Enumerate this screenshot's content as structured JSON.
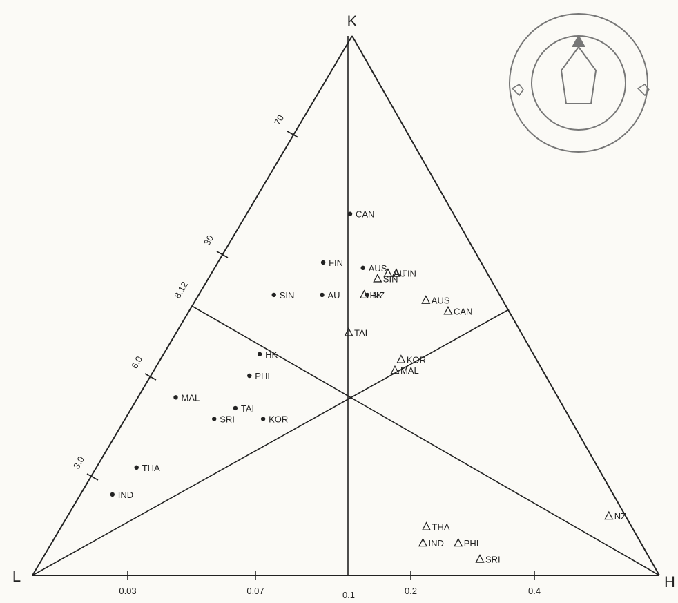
{
  "chart_data": {
    "type": "scatter",
    "title": "",
    "vertices": {
      "top": "K",
      "left": "L",
      "right": "H"
    },
    "left_edge_labels": [
      "3.0",
      "6.0",
      "8.12",
      "30",
      "70"
    ],
    "bottom_edge_labels": [
      "0.03",
      "0.07",
      "0.1",
      "0.2",
      "0.4"
    ],
    "series": [
      {
        "marker": "dot",
        "points": [
          {
            "label": "NZ",
            "b": 0.52,
            "a": 0.56
          },
          {
            "label": "AUS",
            "b": 0.57,
            "a": 0.55
          },
          {
            "label": "CAN",
            "b": 0.67,
            "a": 0.5
          },
          {
            "label": "AU",
            "b": 0.52,
            "a": 0.41
          },
          {
            "label": "FIN",
            "b": 0.58,
            "a": 0.4
          },
          {
            "label": "KOR",
            "b": 0.29,
            "a": 0.31
          },
          {
            "label": "HK",
            "b": 0.41,
            "a": 0.26
          },
          {
            "label": "PHI",
            "b": 0.37,
            "a": 0.25
          },
          {
            "label": "TAI",
            "b": 0.31,
            "a": 0.24
          },
          {
            "label": "SRI",
            "b": 0.29,
            "a": 0.2
          },
          {
            "label": "SIN",
            "b": 0.52,
            "a": 0.25
          },
          {
            "label": "MAL",
            "b": 0.33,
            "a": 0.09
          },
          {
            "label": "THA",
            "b": 0.2,
            "a": 0.08
          },
          {
            "label": "IND",
            "b": 0.15,
            "a": 0.06
          }
        ]
      },
      {
        "marker": "triangle",
        "points": [
          {
            "label": "AU",
            "b": 0.56,
            "a": 0.64
          },
          {
            "label": "TAI",
            "b": 0.45,
            "a": 0.5
          },
          {
            "label": "FIN",
            "b": 0.56,
            "a": 0.67
          },
          {
            "label": "SIN",
            "b": 0.55,
            "a": 0.6
          },
          {
            "label": "HK",
            "b": 0.52,
            "a": 0.55
          },
          {
            "label": "AUS",
            "b": 0.51,
            "a": 0.75
          },
          {
            "label": "CAN",
            "b": 0.49,
            "a": 0.81
          },
          {
            "label": "KOR",
            "b": 0.4,
            "a": 0.64
          },
          {
            "label": "MAL",
            "b": 0.38,
            "a": 0.62
          },
          {
            "label": "NZ",
            "b": 0.11,
            "a": 0.97
          },
          {
            "label": "THA",
            "b": 0.09,
            "a": 0.64
          },
          {
            "label": "PHI",
            "b": 0.06,
            "a": 0.69
          },
          {
            "label": "IND",
            "b": 0.06,
            "a": 0.63
          },
          {
            "label": "SRI",
            "b": 0.03,
            "a": 0.72
          }
        ]
      }
    ]
  }
}
